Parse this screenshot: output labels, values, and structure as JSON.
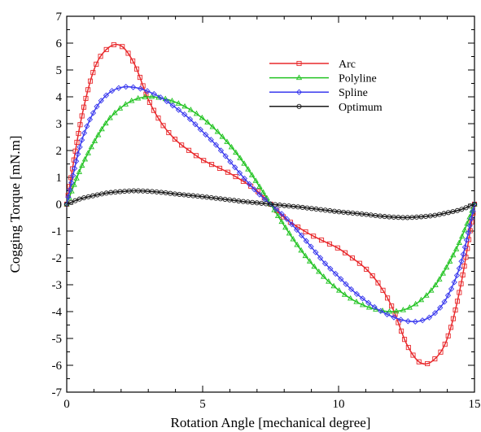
{
  "chart_data": {
    "type": "line",
    "title": "",
    "xlabel": "Rotation Angle [mechanical degree]",
    "ylabel": "Cogging Torque [mN.m]",
    "xlim": [
      0,
      15
    ],
    "ylim": [
      -7,
      7
    ],
    "xticks": [
      0,
      5,
      10,
      15
    ],
    "yticks": [
      -7,
      -6,
      -5,
      -4,
      -3,
      -2,
      -1,
      0,
      1,
      2,
      3,
      4,
      5,
      6,
      7
    ],
    "grid": false,
    "legend_position": "top-right",
    "x": [
      0,
      0.5,
      1,
      1.5,
      2,
      2.5,
      3,
      3.5,
      4,
      4.5,
      5,
      5.5,
      6,
      6.5,
      7,
      7.5,
      8,
      8.5,
      9,
      9.5,
      10,
      10.5,
      11,
      11.5,
      12,
      12.5,
      13,
      13.5,
      14,
      14.5,
      15
    ],
    "series": [
      {
        "name": "Arc",
        "color": "#e8282b",
        "marker": "square",
        "values": [
          0,
          3.0,
          5.0,
          5.8,
          5.9,
          5.2,
          3.9,
          3.0,
          2.4,
          2.0,
          1.65,
          1.4,
          1.15,
          0.85,
          0.5,
          0,
          -0.5,
          -0.85,
          -1.15,
          -1.4,
          -1.65,
          -2.0,
          -2.4,
          -3.0,
          -3.9,
          -5.2,
          -5.9,
          -5.8,
          -5.0,
          -3.0,
          0
        ]
      },
      {
        "name": "Polyline",
        "color": "#22c322",
        "marker": "triangle",
        "values": [
          0,
          1.3,
          2.3,
          3.1,
          3.6,
          3.9,
          4.0,
          3.95,
          3.8,
          3.55,
          3.2,
          2.75,
          2.2,
          1.55,
          0.8,
          0,
          -0.8,
          -1.55,
          -2.2,
          -2.75,
          -3.2,
          -3.55,
          -3.8,
          -3.95,
          -4.0,
          -3.9,
          -3.6,
          -3.1,
          -2.3,
          -1.3,
          0
        ]
      },
      {
        "name": "Spline",
        "color": "#3a3aee",
        "marker": "diamond",
        "values": [
          0,
          2.2,
          3.45,
          4.1,
          4.35,
          4.35,
          4.2,
          3.95,
          3.6,
          3.2,
          2.7,
          2.2,
          1.6,
          1.0,
          0.45,
          0,
          -0.45,
          -1.0,
          -1.6,
          -2.2,
          -2.7,
          -3.2,
          -3.6,
          -3.95,
          -4.2,
          -4.35,
          -4.35,
          -4.1,
          -3.45,
          -2.2,
          0
        ]
      },
      {
        "name": "Optimum",
        "color": "#1a1a1a",
        "marker": "circle",
        "values": [
          0,
          0.2,
          0.32,
          0.42,
          0.47,
          0.5,
          0.48,
          0.44,
          0.38,
          0.33,
          0.28,
          0.22,
          0.16,
          0.1,
          0.05,
          0,
          -0.05,
          -0.1,
          -0.16,
          -0.22,
          -0.28,
          -0.33,
          -0.38,
          -0.44,
          -0.48,
          -0.5,
          -0.47,
          -0.42,
          -0.32,
          -0.2,
          0
        ]
      }
    ]
  }
}
